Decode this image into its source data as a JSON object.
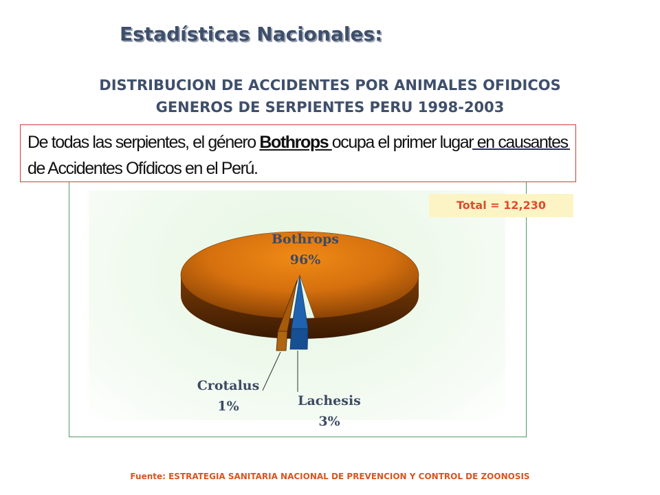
{
  "header": {
    "title": "Estadísticas Nacionales:"
  },
  "chart_data": {
    "type": "pie",
    "title_line1": "DISTRIBUCION DE ACCIDENTES POR ANIMALES OFIDICOS",
    "title_line2": "GENEROS DE SERPIENTES  PERU  1998-2003",
    "slices": [
      {
        "label": "Bothrops",
        "value": 96,
        "display": "96%",
        "color": "#d9730f"
      },
      {
        "label": "Lachesis",
        "value": 3,
        "display": "3%",
        "color": "#1f63b0"
      },
      {
        "label": "Crotalus",
        "value": 1,
        "display": "1%",
        "color": "#a65a0a"
      }
    ],
    "total_text": "Total = 12,230",
    "legend": "none"
  },
  "callout": {
    "part1": "De todas las serpientes, el género ",
    "highlight": "Bothrops ",
    "part2": "ocupa el primer lugar en causantes de Accidentes  Ofídicos  en el   Perú."
  },
  "footer": {
    "source": "Fuente: ESTRATEGIA SANITARIA NACIONAL DE PREVENCION Y CONTROL DE ZOONOSIS"
  },
  "colors": {
    "title": "#3f4f6b",
    "accent_red": "#e24a2b",
    "source": "#d9541e",
    "panel_border": "#4f9a63"
  }
}
